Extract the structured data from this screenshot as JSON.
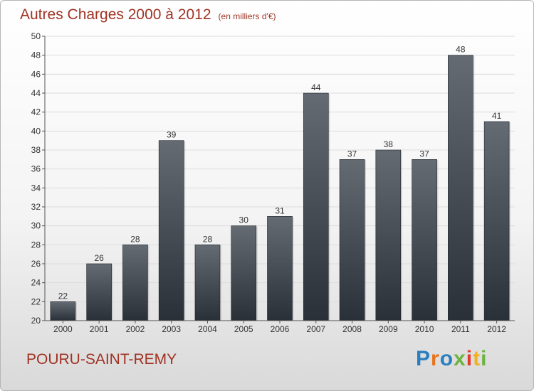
{
  "header": {
    "title": "Autres Charges 2000 à 2012",
    "unit": "(en milliers d'€)"
  },
  "footer": {
    "commune": "POURU-SAINT-REMY",
    "logo": "Proxiti",
    "logo_colors": [
      "#2a7fc1",
      "#e8731b",
      "#2a7fc1",
      "#6cb33f",
      "#e33b2b",
      "#f2b01e",
      "#6cb33f"
    ]
  },
  "colors": {
    "bar_top": "#646b72",
    "bar_bottom": "#2a3038",
    "grid": "#dcdcdc",
    "axis": "#555555",
    "title": "#a03323"
  },
  "chart_data": {
    "type": "bar",
    "title": "Autres Charges 2000 à 2012",
    "ylabel": "",
    "xlabel": "",
    "ylim": [
      20,
      50
    ],
    "ytick_step": 2,
    "grid": true,
    "categories": [
      "2000",
      "2001",
      "2002",
      "2003",
      "2004",
      "2005",
      "2006",
      "2007",
      "2008",
      "2009",
      "2010",
      "2011",
      "2012"
    ],
    "values": [
      22,
      26,
      28,
      39,
      28,
      30,
      31,
      44,
      37,
      38,
      37,
      48,
      41
    ]
  }
}
